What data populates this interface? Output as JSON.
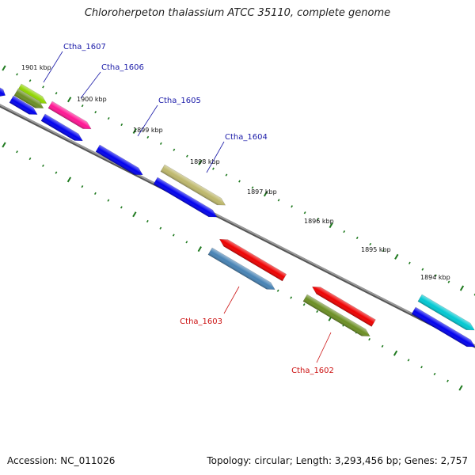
{
  "title": "Chloroherpeton thalassium ATCC 35110, complete genome",
  "footer": {
    "accession": "Accession: NC_011026",
    "summary": "Topology: circular; Length: 3,293,456 bp; Genes: 2,757"
  },
  "colors": {
    "backbone": "#7a7a7a",
    "tick": "#1f7a1f",
    "forward_label": "#1a1aa8",
    "reverse_label": "#cc1111"
  },
  "scale_labels": [
    "1901 kbp",
    "1900 kbp",
    "1899 kbp",
    "1898 kbp",
    "1897 kbp",
    "1896 kbp",
    "1895 kbp",
    "1894 kbp"
  ],
  "genes": [
    {
      "label": "Ctha_1607",
      "strand": "forward",
      "color": "#8fd400"
    },
    {
      "label": "Ctha_1606",
      "strand": "forward",
      "color": "#ff1493"
    },
    {
      "label": "Ctha_1605",
      "strand": "forward",
      "color": "#0000ee"
    },
    {
      "label": "Ctha_1604",
      "strand": "forward",
      "color": "#bdb76b"
    },
    {
      "label": "Ctha_1603",
      "strand": "reverse",
      "color": "#4682b4"
    },
    {
      "label": "Ctha_1602",
      "strand": "reverse",
      "color": "#6b8e23"
    }
  ]
}
